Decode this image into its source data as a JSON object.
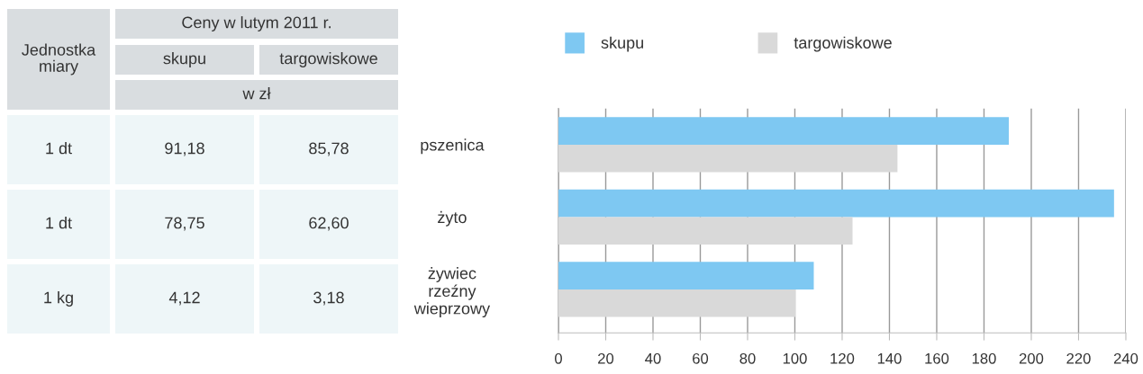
{
  "chart_data": [
    {
      "type": "other",
      "annotations": [
        "Jednostka miary",
        "Ceny w lutym 2011 r.",
        "skupu",
        "targowiskowe",
        "w zł",
        "1 dt",
        "91,18",
        "85,78",
        "1 dt",
        "78,75",
        "62,60",
        "1 kg",
        "4,12",
        "3,18"
      ]
    },
    {
      "type": "bar",
      "orientation": "horizontal",
      "categories": [
        "pszenica",
        "żyto",
        "żywiec\nrzeźny\nwieprzowy"
      ],
      "series": [
        {
          "name": "skupu",
          "color": "#7ec8f2",
          "values": [
            190.5,
            235,
            108
          ]
        },
        {
          "name": "targowiskowe",
          "color": "#d9d9d9",
          "values": [
            143.4,
            124.4,
            100.3
          ]
        }
      ],
      "xlim": [
        0,
        240
      ],
      "xticks": [
        0,
        20,
        40,
        60,
        80,
        100,
        120,
        140,
        160,
        180,
        200,
        220,
        240
      ],
      "grid": "x",
      "legend": "top"
    }
  ]
}
